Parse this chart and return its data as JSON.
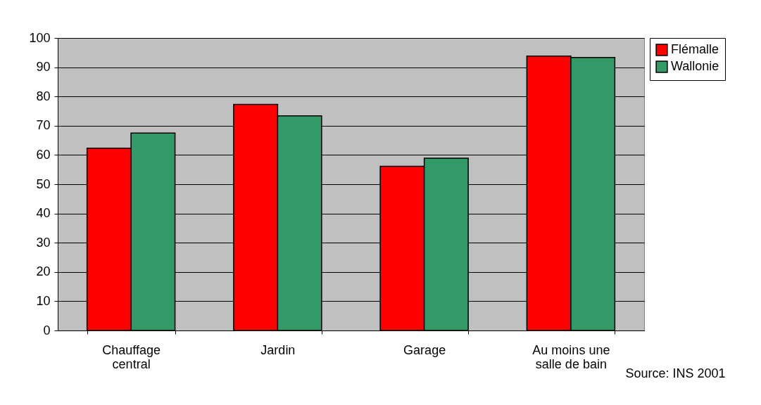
{
  "chart_data": {
    "type": "bar",
    "categories": [
      "Chauffage central",
      "Jardin",
      "Garage",
      "Au moins une salle de bain"
    ],
    "series": [
      {
        "name": "Flémalle",
        "color": "#ff0000",
        "values": [
          62.3,
          77.3,
          56.1,
          93.8
        ]
      },
      {
        "name": "Wallonie",
        "color": "#339966",
        "values": [
          67.5,
          73.4,
          58.9,
          93.3
        ]
      }
    ],
    "ylim": [
      0,
      100
    ],
    "yticks": [
      0,
      10,
      20,
      30,
      40,
      50,
      60,
      70,
      80,
      90,
      100
    ],
    "grid": "y",
    "legend": "right",
    "annotations": [
      "Source: INS 2001"
    ]
  }
}
